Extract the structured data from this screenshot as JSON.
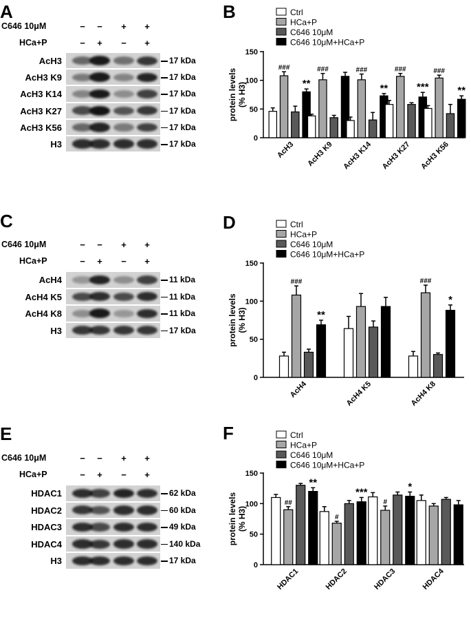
{
  "panels": {
    "A": {
      "letter": "A",
      "cond1": "C646 10μM",
      "cond2": "HCa+P",
      "signs1": [
        "−",
        "−",
        "+",
        "+"
      ],
      "signs2": [
        "−",
        "+",
        "−",
        "+"
      ],
      "rows": [
        {
          "label": "AcH3",
          "kda": "17 kDa",
          "intensity": [
            0.55,
            0.95,
            0.5,
            0.8
          ]
        },
        {
          "label": "AcH3 K9",
          "kda": "17 kDa",
          "intensity": [
            0.45,
            0.95,
            0.4,
            0.9
          ]
        },
        {
          "label": "AcH3 K14",
          "kda": "17 kDa",
          "intensity": [
            0.4,
            0.95,
            0.35,
            0.75
          ]
        },
        {
          "label": "AcH3 K27",
          "kda": "17 kDa",
          "intensity": [
            0.7,
            0.98,
            0.65,
            0.8
          ]
        },
        {
          "label": "AcH3 K56",
          "kda": "17 kDa",
          "intensity": [
            0.55,
            0.9,
            0.45,
            0.75
          ]
        },
        {
          "label": "H3",
          "kda": "17 kDa",
          "intensity": [
            0.85,
            0.85,
            0.85,
            0.85
          ]
        }
      ]
    },
    "C": {
      "letter": "C",
      "cond1": "C646 10μM",
      "cond2": "HCa+P",
      "signs1": [
        "−",
        "−",
        "+",
        "+"
      ],
      "signs2": [
        "−",
        "+",
        "−",
        "+"
      ],
      "rows": [
        {
          "label": "AcH4",
          "kda": "11 kDa",
          "intensity": [
            0.3,
            0.9,
            0.35,
            0.75
          ]
        },
        {
          "label": "AcH4 K5",
          "kda": "11 kDa",
          "intensity": [
            0.7,
            0.85,
            0.7,
            0.85
          ]
        },
        {
          "label": "AcH4 K8",
          "kda": "11 kDa",
          "intensity": [
            0.35,
            0.95,
            0.3,
            0.85
          ]
        },
        {
          "label": "H3",
          "kda": "17 kDa",
          "intensity": [
            0.8,
            0.8,
            0.8,
            0.8
          ]
        }
      ]
    },
    "E": {
      "letter": "E",
      "cond1": "C646 10μM",
      "cond2": "HCa+P",
      "signs1": [
        "−",
        "−",
        "+",
        "+"
      ],
      "signs2": [
        "−",
        "+",
        "−",
        "+"
      ],
      "rows": [
        {
          "label": "HDAC1",
          "kda": "62 kDa",
          "intensity": [
            0.85,
            0.75,
            0.9,
            0.85
          ]
        },
        {
          "label": "HDAC2",
          "kda": "60 kDa",
          "intensity": [
            0.8,
            0.65,
            0.85,
            0.85
          ]
        },
        {
          "label": "HDAC3",
          "kda": "49 kDa",
          "intensity": [
            0.85,
            0.7,
            0.85,
            0.85
          ]
        },
        {
          "label": "HDAC4",
          "kda": "140 kDa",
          "intensity": [
            0.85,
            0.8,
            0.85,
            0.85
          ]
        },
        {
          "label": "H3",
          "kda": "17 kDa",
          "intensity": [
            0.85,
            0.85,
            0.85,
            0.85
          ]
        }
      ]
    }
  },
  "legend": {
    "entries": [
      "Ctrl",
      "HCa+P",
      "C646 10μM",
      "C646 10μM+HCa+P"
    ],
    "colors": [
      "#ffffff",
      "#a6a6a6",
      "#595959",
      "#000000"
    ]
  },
  "chart_data": [
    {
      "letter": "B",
      "type": "bar",
      "ylabel": "protein levels\n(% H3)",
      "ylim": [
        0,
        150
      ],
      "yticks": [
        0,
        50,
        100,
        150
      ],
      "categories": [
        "AcH3",
        "AcH3 K9",
        "AcH3 K14",
        "AcH3 K27",
        "AcH3 K56"
      ],
      "series": [
        {
          "name": "Ctrl",
          "values": [
            46,
            38,
            30,
            58,
            51
          ],
          "errors": [
            6,
            3,
            6,
            7,
            5
          ]
        },
        {
          "name": "HCa+P",
          "values": [
            108,
            101,
            101,
            107,
            104
          ],
          "errors": [
            7,
            11,
            10,
            5,
            5
          ]
        },
        {
          "name": "C646 10μM",
          "values": [
            45,
            35,
            31,
            58,
            42
          ],
          "errors": [
            10,
            4,
            13,
            3,
            16
          ]
        },
        {
          "name": "C646 10μM+HCa+P",
          "values": [
            80,
            107,
            73,
            71,
            67
          ],
          "errors": [
            5,
            7,
            4,
            8,
            6
          ]
        }
      ],
      "annotations": [
        {
          "category": 0,
          "series": 1,
          "text": "###"
        },
        {
          "category": 0,
          "series": 3,
          "text": "**"
        },
        {
          "category": 1,
          "series": 1,
          "text": "###"
        },
        {
          "category": 2,
          "series": 1,
          "text": "###"
        },
        {
          "category": 2,
          "series": 3,
          "text": "**"
        },
        {
          "category": 3,
          "series": 1,
          "text": "###"
        },
        {
          "category": 3,
          "series": 3,
          "text": "***"
        },
        {
          "category": 4,
          "series": 1,
          "text": "###"
        },
        {
          "category": 4,
          "series": 3,
          "text": "**"
        }
      ]
    },
    {
      "letter": "D",
      "type": "bar",
      "ylabel": "protein levels\n(% H3)",
      "ylim": [
        0,
        150
      ],
      "yticks": [
        0,
        50,
        100,
        150
      ],
      "categories": [
        "AcH4",
        "AcH4 K5",
        "AcH4 K8"
      ],
      "series": [
        {
          "name": "Ctrl",
          "values": [
            28,
            64,
            28
          ],
          "errors": [
            5,
            16,
            6
          ]
        },
        {
          "name": "HCa+P",
          "values": [
            108,
            93,
            111
          ],
          "errors": [
            12,
            17,
            10
          ]
        },
        {
          "name": "C646 10μM",
          "values": [
            33,
            66,
            30
          ],
          "errors": [
            4,
            8,
            2
          ]
        },
        {
          "name": "C646 10μM+HCa+P",
          "values": [
            69,
            93,
            88
          ],
          "errors": [
            6,
            12,
            7
          ]
        }
      ],
      "annotations": [
        {
          "category": 0,
          "series": 1,
          "text": "###"
        },
        {
          "category": 0,
          "series": 3,
          "text": "**"
        },
        {
          "category": 2,
          "series": 1,
          "text": "###"
        },
        {
          "category": 2,
          "series": 3,
          "text": "*"
        }
      ]
    },
    {
      "letter": "F",
      "type": "bar",
      "ylabel": "protein levels\n(% H3)",
      "ylim": [
        0,
        150
      ],
      "yticks": [
        0,
        50,
        100,
        150
      ],
      "categories": [
        "HDAC1",
        "HDAC2",
        "HDAC3",
        "HDAC4"
      ],
      "series": [
        {
          "name": "Ctrl",
          "values": [
            110,
            87,
            111,
            105
          ],
          "errors": [
            5,
            8,
            7,
            9
          ]
        },
        {
          "name": "HCa+P",
          "values": [
            90,
            68,
            89,
            96
          ],
          "errors": [
            5,
            3,
            7,
            4
          ]
        },
        {
          "name": "C646 10μM",
          "values": [
            130,
            100,
            114,
            107
          ],
          "errors": [
            3,
            5,
            5,
            3
          ]
        },
        {
          "name": "C646 10μM+HCa+P",
          "values": [
            120,
            103,
            112,
            98
          ],
          "errors": [
            6,
            7,
            7,
            7
          ]
        }
      ],
      "annotations": [
        {
          "category": 0,
          "series": 1,
          "text": "##"
        },
        {
          "category": 0,
          "series": 3,
          "text": "**"
        },
        {
          "category": 1,
          "series": 1,
          "text": "#"
        },
        {
          "category": 1,
          "series": 3,
          "text": "***"
        },
        {
          "category": 2,
          "series": 1,
          "text": "#"
        },
        {
          "category": 2,
          "series": 3,
          "text": "*"
        }
      ]
    }
  ]
}
